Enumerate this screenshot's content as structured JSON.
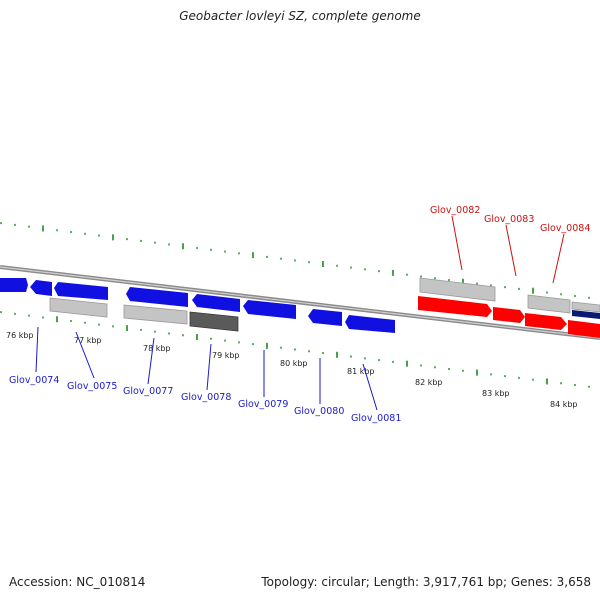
{
  "title": "Geobacter lovleyi SZ, complete genome",
  "footer": {
    "accession": "Accession: NC_010814",
    "summary": "Topology: circular; Length: 3,917,761 bp; Genes: 3,658"
  },
  "colors": {
    "forward_gene": "#1010e0",
    "reverse_gene": "#ff0000",
    "light_gray_gene": "#c4c4c4",
    "dark_gray_gene": "#5a5a5a",
    "navy_gene": "#0a1a70",
    "tick": "#1a8a1a",
    "label_blue": "#1a1acc",
    "label_red": "#cc1111"
  },
  "kbp_labels": [
    "76 kbp",
    "77 kbp",
    "78 kbp",
    "79 kbp",
    "80 kbp",
    "81 kbp",
    "82 kbp",
    "83 kbp",
    "84 kbp"
  ],
  "gene_labels": [
    {
      "text": "Glov_0074",
      "strand": "bottom"
    },
    {
      "text": "Glov_0075",
      "strand": "bottom"
    },
    {
      "text": "Glov_0077",
      "strand": "bottom"
    },
    {
      "text": "Glov_0078",
      "strand": "bottom"
    },
    {
      "text": "Glov_0079",
      "strand": "bottom"
    },
    {
      "text": "Glov_0080",
      "strand": "bottom"
    },
    {
      "text": "Glov_0081",
      "strand": "bottom"
    },
    {
      "text": "Glov_0082",
      "strand": "top"
    },
    {
      "text": "Glov_0083",
      "strand": "top"
    },
    {
      "text": "Glov_0084",
      "strand": "top"
    }
  ]
}
